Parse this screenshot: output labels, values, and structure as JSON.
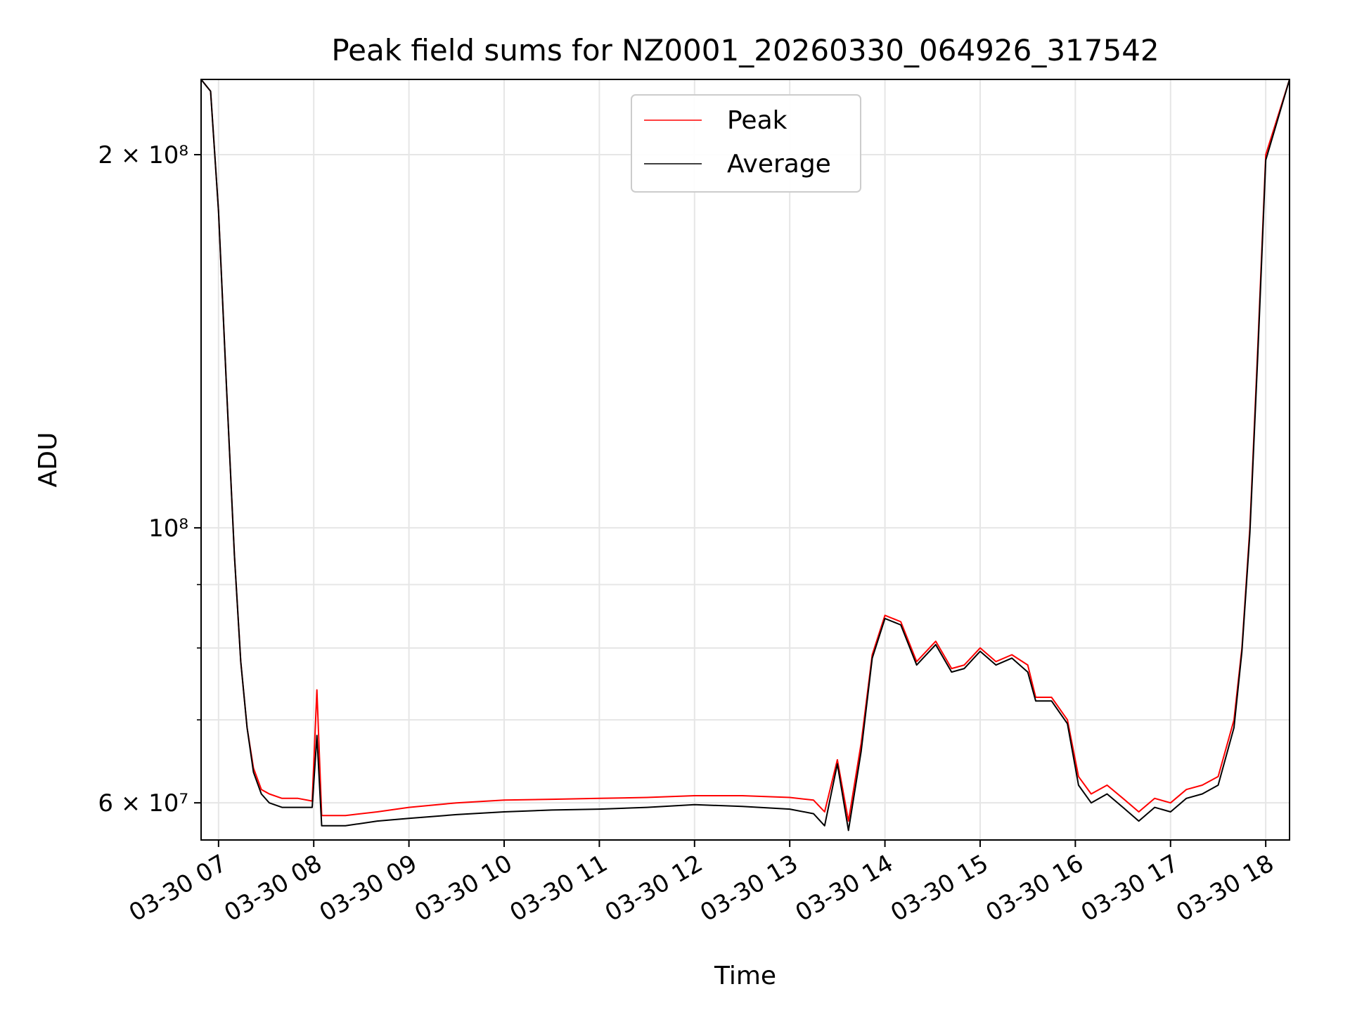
{
  "chart_data": {
    "type": "line",
    "title": "Peak field sums for NZ0001_20260330_064926_317542",
    "xlabel": "Time",
    "ylabel": "ADU",
    "x_tick_labels": [
      "03-30 07",
      "03-30 08",
      "03-30 09",
      "03-30 10",
      "03-30 11",
      "03-30 12",
      "03-30 13",
      "03-30 14",
      "03-30 15",
      "03-30 16",
      "03-30 17",
      "03-30 18"
    ],
    "x_ticks": [
      "2026-03-30 07:00",
      "2026-03-30 08:00",
      "2026-03-30 09:00",
      "2026-03-30 10:00",
      "2026-03-30 11:00",
      "2026-03-30 12:00",
      "2026-03-30 13:00",
      "2026-03-30 14:00",
      "2026-03-30 15:00",
      "2026-03-30 16:00",
      "2026-03-30 17:00",
      "2026-03-30 18:00"
    ],
    "xlim": [
      "2026-03-30 06:49",
      "2026-03-30 18:15"
    ],
    "yscale": "log",
    "ylim": [
      56000000,
      230000000
    ],
    "y_major_ticks": [
      60000000,
      100000000,
      200000000
    ],
    "y_major_tick_labels": [
      "6 × 10⁷",
      "10⁸",
      "2 × 10⁸"
    ],
    "y_minor_ticks": [
      70000000,
      80000000,
      90000000
    ],
    "grid": true,
    "legend_position": "top-center",
    "series": [
      {
        "name": "Peak",
        "color": "#ff0000",
        "x": [
          "2026-03-30 06:49",
          "2026-03-30 06:55",
          "2026-03-30 07:00",
          "2026-03-30 07:05",
          "2026-03-30 07:10",
          "2026-03-30 07:14",
          "2026-03-30 07:18",
          "2026-03-30 07:22",
          "2026-03-30 07:27",
          "2026-03-30 07:32",
          "2026-03-30 07:40",
          "2026-03-30 07:50",
          "2026-03-30 07:59",
          "2026-03-30 08:02",
          "2026-03-30 08:05",
          "2026-03-30 08:20",
          "2026-03-30 08:40",
          "2026-03-30 09:00",
          "2026-03-30 09:30",
          "2026-03-30 10:00",
          "2026-03-30 10:30",
          "2026-03-30 11:00",
          "2026-03-30 11:30",
          "2026-03-30 12:00",
          "2026-03-30 12:30",
          "2026-03-30 13:00",
          "2026-03-30 13:15",
          "2026-03-30 13:22",
          "2026-03-30 13:30",
          "2026-03-30 13:37",
          "2026-03-30 13:45",
          "2026-03-30 13:52",
          "2026-03-30 14:00",
          "2026-03-30 14:10",
          "2026-03-30 14:20",
          "2026-03-30 14:32",
          "2026-03-30 14:42",
          "2026-03-30 14:50",
          "2026-03-30 15:00",
          "2026-03-30 15:10",
          "2026-03-30 15:20",
          "2026-03-30 15:30",
          "2026-03-30 15:35",
          "2026-03-30 15:45",
          "2026-03-30 15:55",
          "2026-03-30 16:02",
          "2026-03-30 16:10",
          "2026-03-30 16:20",
          "2026-03-30 16:30",
          "2026-03-30 16:40",
          "2026-03-30 16:50",
          "2026-03-30 17:00",
          "2026-03-30 17:10",
          "2026-03-30 17:20",
          "2026-03-30 17:30",
          "2026-03-30 17:40",
          "2026-03-30 17:45",
          "2026-03-30 17:50",
          "2026-03-30 17:55",
          "2026-03-30 18:00",
          "2026-03-30 18:15"
        ],
        "y": [
          230000000,
          225000000,
          180000000,
          130000000,
          95000000,
          78000000,
          69000000,
          64000000,
          61500000,
          61000000,
          60500000,
          60500000,
          60200000,
          74000000,
          58600000,
          58600000,
          59000000,
          59500000,
          60000000,
          60300000,
          60400000,
          60500000,
          60600000,
          60800000,
          60800000,
          60600000,
          60300000,
          59000000,
          65000000,
          58000000,
          67000000,
          79000000,
          85000000,
          84000000,
          78000000,
          81000000,
          77000000,
          77500000,
          80000000,
          78000000,
          79000000,
          77500000,
          73000000,
          73000000,
          70000000,
          63000000,
          61000000,
          62000000,
          60500000,
          59000000,
          60500000,
          60000000,
          61500000,
          62000000,
          63000000,
          70000000,
          80000000,
          100000000,
          140000000,
          200000000,
          230000000
        ]
      },
      {
        "name": "Average",
        "color": "#000000",
        "x": [
          "2026-03-30 06:49",
          "2026-03-30 06:55",
          "2026-03-30 07:00",
          "2026-03-30 07:05",
          "2026-03-30 07:10",
          "2026-03-30 07:14",
          "2026-03-30 07:18",
          "2026-03-30 07:22",
          "2026-03-30 07:27",
          "2026-03-30 07:32",
          "2026-03-30 07:40",
          "2026-03-30 07:50",
          "2026-03-30 07:59",
          "2026-03-30 08:02",
          "2026-03-30 08:05",
          "2026-03-30 08:20",
          "2026-03-30 08:40",
          "2026-03-30 09:00",
          "2026-03-30 09:30",
          "2026-03-30 10:00",
          "2026-03-30 10:30",
          "2026-03-30 11:00",
          "2026-03-30 11:30",
          "2026-03-30 12:00",
          "2026-03-30 12:30",
          "2026-03-30 13:00",
          "2026-03-30 13:15",
          "2026-03-30 13:22",
          "2026-03-30 13:30",
          "2026-03-30 13:37",
          "2026-03-30 13:45",
          "2026-03-30 13:52",
          "2026-03-30 14:00",
          "2026-03-30 14:10",
          "2026-03-30 14:20",
          "2026-03-30 14:32",
          "2026-03-30 14:42",
          "2026-03-30 14:50",
          "2026-03-30 15:00",
          "2026-03-30 15:10",
          "2026-03-30 15:20",
          "2026-03-30 15:30",
          "2026-03-30 15:35",
          "2026-03-30 15:45",
          "2026-03-30 15:55",
          "2026-03-30 16:02",
          "2026-03-30 16:10",
          "2026-03-30 16:20",
          "2026-03-30 16:30",
          "2026-03-30 16:40",
          "2026-03-30 16:50",
          "2026-03-30 17:00",
          "2026-03-30 17:10",
          "2026-03-30 17:20",
          "2026-03-30 17:30",
          "2026-03-30 17:40",
          "2026-03-30 17:45",
          "2026-03-30 17:50",
          "2026-03-30 17:55",
          "2026-03-30 18:00",
          "2026-03-30 18:15"
        ],
        "y": [
          230000000,
          225000000,
          180000000,
          130000000,
          95000000,
          78000000,
          69000000,
          63500000,
          61000000,
          60000000,
          59500000,
          59500000,
          59500000,
          68000000,
          57500000,
          57500000,
          58000000,
          58300000,
          58700000,
          59000000,
          59200000,
          59300000,
          59500000,
          59800000,
          59600000,
          59300000,
          58800000,
          57500000,
          64500000,
          57000000,
          66000000,
          78500000,
          84500000,
          83500000,
          77500000,
          80500000,
          76500000,
          77000000,
          79500000,
          77500000,
          78500000,
          76500000,
          72500000,
          72500000,
          69500000,
          62000000,
          60000000,
          61000000,
          59500000,
          58000000,
          59500000,
          59000000,
          60500000,
          61000000,
          62000000,
          69000000,
          79500000,
          99000000,
          138000000,
          198000000,
          230000000
        ]
      }
    ]
  }
}
